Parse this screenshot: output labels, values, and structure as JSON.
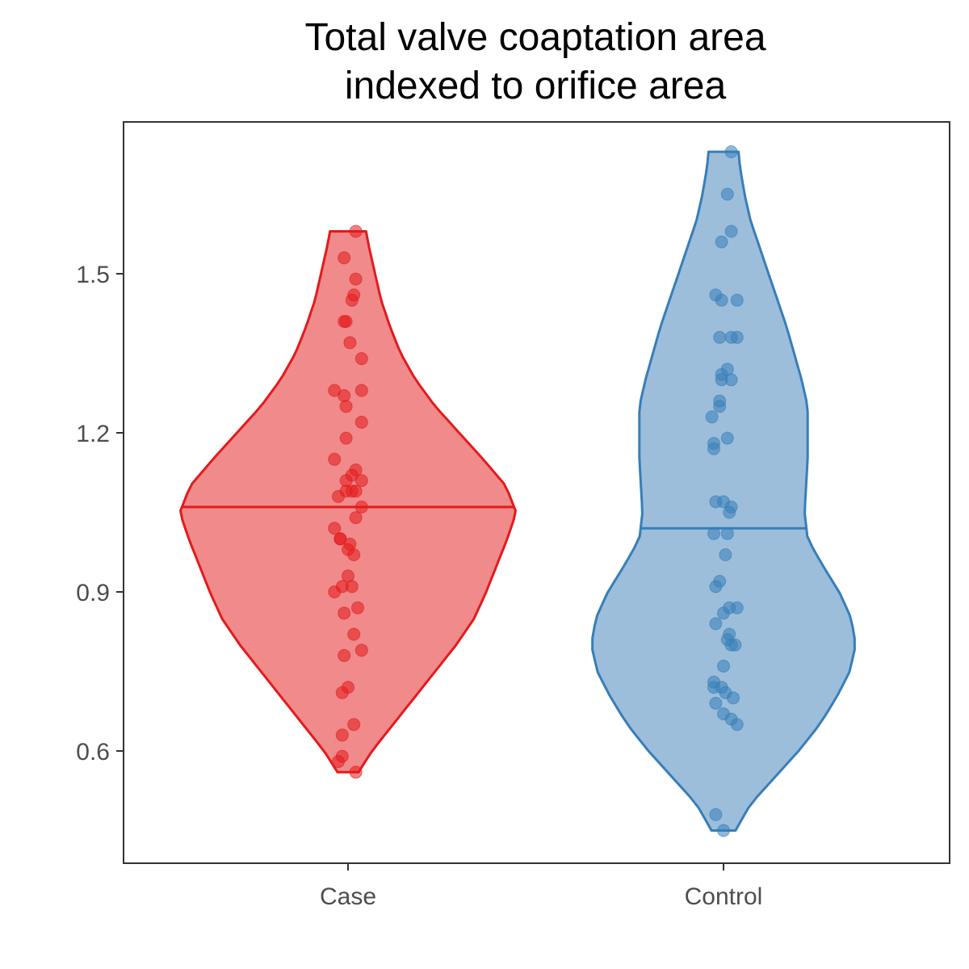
{
  "chart_data": {
    "type": "violin",
    "title": [
      "Total valve coaptation area",
      "indexed to orifice area"
    ],
    "xlabel": "",
    "ylabel": "",
    "categories": [
      "Case",
      "Control"
    ],
    "yticks": [
      0.6,
      0.9,
      1.2,
      1.5
    ],
    "ytick_labels": [
      "0.6",
      "0.9",
      "1.2",
      "1.5"
    ],
    "ylim": [
      0.43,
      1.8
    ],
    "grid": false,
    "legend": "none",
    "series": [
      {
        "category": "Case",
        "color": "#e41a1c",
        "fill": "#f08a8b",
        "median": 1.06,
        "range": [
          0.56,
          1.58
        ],
        "density_profile": [
          [
            0.56,
            0.07
          ],
          [
            0.6,
            0.16
          ],
          [
            0.65,
            0.3
          ],
          [
            0.7,
            0.44
          ],
          [
            0.75,
            0.58
          ],
          [
            0.8,
            0.72
          ],
          [
            0.85,
            0.84
          ],
          [
            0.9,
            0.92
          ],
          [
            0.95,
            0.99
          ],
          [
            1.0,
            1.06
          ],
          [
            1.05,
            1.12
          ],
          [
            1.1,
            1.05
          ],
          [
            1.15,
            0.9
          ],
          [
            1.2,
            0.74
          ],
          [
            1.25,
            0.58
          ],
          [
            1.3,
            0.45
          ],
          [
            1.35,
            0.35
          ],
          [
            1.4,
            0.28
          ],
          [
            1.45,
            0.22
          ],
          [
            1.5,
            0.18
          ],
          [
            1.55,
            0.14
          ],
          [
            1.58,
            0.12
          ]
        ],
        "points": [
          [
            0.04,
            1.58
          ],
          [
            -0.02,
            1.53
          ],
          [
            0.04,
            1.49
          ],
          [
            0.03,
            1.46
          ],
          [
            0.02,
            1.45
          ],
          [
            -0.01,
            1.41
          ],
          [
            -0.02,
            1.41
          ],
          [
            0.01,
            1.37
          ],
          [
            0.07,
            1.34
          ],
          [
            -0.07,
            1.28
          ],
          [
            0.07,
            1.28
          ],
          [
            -0.02,
            1.27
          ],
          [
            -0.01,
            1.25
          ],
          [
            0.07,
            1.22
          ],
          [
            -0.01,
            1.19
          ],
          [
            -0.07,
            1.15
          ],
          [
            0.04,
            1.13
          ],
          [
            0.02,
            1.12
          ],
          [
            -0.01,
            1.11
          ],
          [
            0.07,
            1.11
          ],
          [
            0.04,
            1.09
          ],
          [
            -0.01,
            1.09
          ],
          [
            0.02,
            1.09
          ],
          [
            -0.05,
            1.08
          ],
          [
            0.07,
            1.06
          ],
          [
            0.04,
            1.04
          ],
          [
            -0.07,
            1.02
          ],
          [
            -0.04,
            1.0
          ],
          [
            -0.04,
            1.0
          ],
          [
            0.01,
            0.99
          ],
          [
            0.0,
            0.98
          ],
          [
            0.03,
            0.97
          ],
          [
            0.0,
            0.93
          ],
          [
            0.02,
            0.91
          ],
          [
            -0.03,
            0.91
          ],
          [
            -0.07,
            0.9
          ],
          [
            0.05,
            0.87
          ],
          [
            -0.02,
            0.86
          ],
          [
            0.03,
            0.82
          ],
          [
            -0.02,
            0.78
          ],
          [
            0.07,
            0.79
          ],
          [
            0.0,
            0.72
          ],
          [
            -0.03,
            0.71
          ],
          [
            0.03,
            0.65
          ],
          [
            -0.03,
            0.63
          ],
          [
            -0.03,
            0.59
          ],
          [
            -0.05,
            0.58
          ],
          [
            0.04,
            0.56
          ]
        ]
      },
      {
        "category": "Control",
        "color": "#377eb8",
        "fill": "#9cbedb",
        "median": 1.02,
        "range": [
          0.45,
          1.73
        ],
        "density_profile": [
          [
            0.45,
            0.08
          ],
          [
            0.5,
            0.18
          ],
          [
            0.55,
            0.34
          ],
          [
            0.6,
            0.5
          ],
          [
            0.65,
            0.64
          ],
          [
            0.7,
            0.75
          ],
          [
            0.75,
            0.84
          ],
          [
            0.8,
            0.88
          ],
          [
            0.85,
            0.85
          ],
          [
            0.9,
            0.77
          ],
          [
            0.95,
            0.66
          ],
          [
            1.0,
            0.56
          ],
          [
            1.05,
            0.54
          ],
          [
            1.1,
            0.55
          ],
          [
            1.15,
            0.56
          ],
          [
            1.2,
            0.56
          ],
          [
            1.25,
            0.56
          ],
          [
            1.3,
            0.52
          ],
          [
            1.35,
            0.47
          ],
          [
            1.4,
            0.42
          ],
          [
            1.45,
            0.36
          ],
          [
            1.5,
            0.3
          ],
          [
            1.55,
            0.24
          ],
          [
            1.6,
            0.18
          ],
          [
            1.65,
            0.14
          ],
          [
            1.7,
            0.11
          ],
          [
            1.73,
            0.1
          ]
        ],
        "points": [
          [
            0.04,
            1.73
          ],
          [
            0.02,
            1.65
          ],
          [
            0.04,
            1.58
          ],
          [
            -0.01,
            1.56
          ],
          [
            -0.04,
            1.46
          ],
          [
            0.07,
            1.45
          ],
          [
            -0.01,
            1.45
          ],
          [
            -0.02,
            1.38
          ],
          [
            0.04,
            1.38
          ],
          [
            0.07,
            1.38
          ],
          [
            0.02,
            1.32
          ],
          [
            -0.01,
            1.31
          ],
          [
            -0.01,
            1.3
          ],
          [
            0.04,
            1.3
          ],
          [
            -0.02,
            1.25
          ],
          [
            -0.02,
            1.26
          ],
          [
            -0.06,
            1.23
          ],
          [
            0.02,
            1.19
          ],
          [
            -0.05,
            1.18
          ],
          [
            -0.05,
            1.17
          ],
          [
            -0.04,
            1.07
          ],
          [
            0.0,
            1.07
          ],
          [
            0.04,
            1.06
          ],
          [
            0.03,
            1.05
          ],
          [
            -0.05,
            1.01
          ],
          [
            0.02,
            1.01
          ],
          [
            0.01,
            0.97
          ],
          [
            -0.02,
            0.92
          ],
          [
            -0.04,
            0.91
          ],
          [
            0.0,
            0.86
          ],
          [
            0.03,
            0.87
          ],
          [
            0.07,
            0.87
          ],
          [
            -0.04,
            0.84
          ],
          [
            0.03,
            0.82
          ],
          [
            0.02,
            0.81
          ],
          [
            0.06,
            0.8
          ],
          [
            0.04,
            0.8
          ],
          [
            0.0,
            0.76
          ],
          [
            -0.05,
            0.73
          ],
          [
            -0.05,
            0.72
          ],
          [
            -0.01,
            0.72
          ],
          [
            0.01,
            0.71
          ],
          [
            0.05,
            0.7
          ],
          [
            -0.04,
            0.69
          ],
          [
            0.0,
            0.67
          ],
          [
            0.04,
            0.66
          ],
          [
            0.07,
            0.65
          ],
          [
            -0.04,
            0.48
          ],
          [
            0.0,
            0.45
          ]
        ]
      }
    ]
  }
}
